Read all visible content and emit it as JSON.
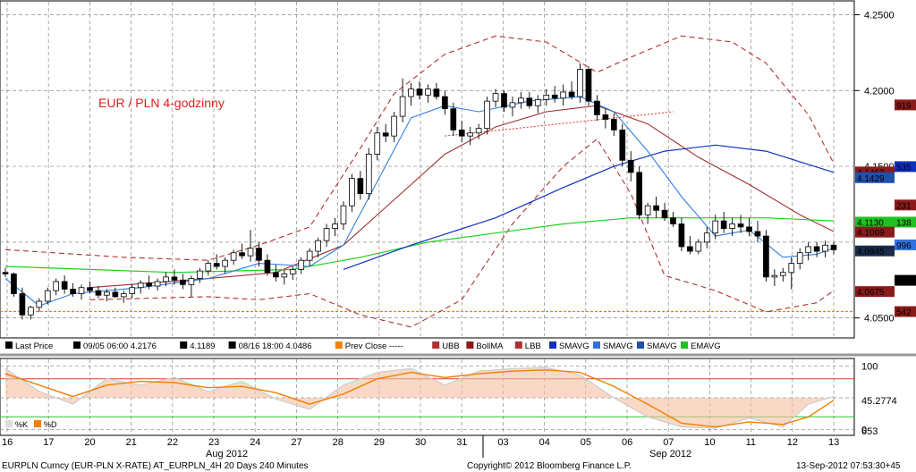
{
  "chart_data": {
    "type": "candlestick",
    "annotation": "EUR / PLN 4-godzinny",
    "price_axis": {
      "ylim": [
        4.038,
        4.255
      ],
      "ticks": [
        {
          "v": 4.25,
          "label": "4.2500"
        },
        {
          "v": 4.2,
          "label": "4.2000"
        },
        {
          "v": 4.05,
          "label": "4.0500"
        }
      ],
      "partial_ticks": [
        {
          "v": 4.15,
          "label": "4.1500"
        }
      ]
    },
    "x_day_labels": [
      "16",
      "17",
      "20",
      "21",
      "22",
      "23",
      "24",
      "27",
      "28",
      "29",
      "30",
      "31",
      "03",
      "04",
      "05",
      "06",
      "07",
      "10",
      "11",
      "12",
      "13"
    ],
    "month_labels": [
      "Aug 2012",
      "Sep 2012"
    ],
    "legend": [
      {
        "label": "Last Price",
        "color": "#000000"
      },
      {
        "label": "09/05 06:00 4.2176",
        "color": "#000000"
      },
      {
        "label": "4.1189",
        "color": "#000000"
      },
      {
        "label": "08/16 18:00 4.0486",
        "color": "#000000"
      },
      {
        "label": "Prev Close -----",
        "color": "#f08000"
      },
      {
        "label": "UBB",
        "color": "#b03030"
      },
      {
        "label": "BollMA",
        "color": "#8b1a1a"
      },
      {
        "label": "LBB",
        "color": "#b03030"
      },
      {
        "label": "SMAVG",
        "color": "#1030c0"
      },
      {
        "label": "SMAVG",
        "color": "#3070e0"
      },
      {
        "label": "SMAVG",
        "color": "#2050b0"
      },
      {
        "label": "EMAVG",
        "color": "#20c020"
      }
    ],
    "value_tags": [
      {
        "label": "919",
        "v": 4.1905,
        "bg": "#8b1a1a",
        "fg": "#ffffff"
      },
      {
        "label": "535",
        "v": 4.1498,
        "bg": "#1030c0",
        "fg": "#ffffff"
      },
      {
        "label": "4.1463",
        "v": 4.1463,
        "bg": "#8b1a1a",
        "fg": "#ffffff"
      },
      {
        "label": "4.1429",
        "v": 4.1425,
        "bg": "#2050b0",
        "fg": "#ffffff"
      },
      {
        "label": "231",
        "v": 4.1245,
        "bg": "#8b1a1a",
        "fg": "#ffffff"
      },
      {
        "label": "4.1130",
        "v": 4.1132,
        "bg": "#20c020",
        "fg": "#000000"
      },
      {
        "label": "138",
        "v": 4.1132,
        "bg": "#20c020",
        "fg": "#000000"
      },
      {
        "label": "4.1069",
        "v": 4.1066,
        "bg": "#8b1a1a",
        "fg": "#ffffff"
      },
      {
        "label": "996",
        "v": 4.0982,
        "bg": "#3070e0",
        "fg": "#ffffff"
      },
      {
        "label": "4.0945",
        "v": 4.0942,
        "bg": "#1a2a4a",
        "fg": "#ffffff"
      },
      {
        "label": "735",
        "v": 4.0748,
        "bg": "#000000",
        "fg": "#ffffff"
      },
      {
        "label": "4.0675",
        "v": 4.0674,
        "bg": "#8b1a1a",
        "fg": "#ffffff"
      },
      {
        "label": "542",
        "v": 4.0542,
        "bg": "#8b1a1a",
        "fg": "#ffffff"
      }
    ],
    "prev_close": 4.0542,
    "candles": [
      [
        4.08,
        4.083,
        4.077,
        4.079
      ],
      [
        4.079,
        4.08,
        4.064,
        4.066
      ],
      [
        4.066,
        4.07,
        4.049,
        4.052
      ],
      [
        4.052,
        4.058,
        4.049,
        4.057
      ],
      [
        4.057,
        4.063,
        4.054,
        4.061
      ],
      [
        4.061,
        4.07,
        4.059,
        4.068
      ],
      [
        4.068,
        4.076,
        4.065,
        4.074
      ],
      [
        4.074,
        4.078,
        4.066,
        4.069
      ],
      [
        4.069,
        4.073,
        4.064,
        4.066
      ],
      [
        4.066,
        4.072,
        4.062,
        4.07
      ],
      [
        4.07,
        4.074,
        4.066,
        4.068
      ],
      [
        4.068,
        4.071,
        4.063,
        4.065
      ],
      [
        4.065,
        4.069,
        4.061,
        4.067
      ],
      [
        4.067,
        4.07,
        4.063,
        4.064
      ],
      [
        4.064,
        4.068,
        4.06,
        4.066
      ],
      [
        4.066,
        4.072,
        4.063,
        4.07
      ],
      [
        4.07,
        4.075,
        4.066,
        4.073
      ],
      [
        4.073,
        4.078,
        4.069,
        4.071
      ],
      [
        4.071,
        4.076,
        4.068,
        4.074
      ],
      [
        4.074,
        4.08,
        4.071,
        4.077
      ],
      [
        4.077,
        4.082,
        4.072,
        4.075
      ],
      [
        4.075,
        4.079,
        4.069,
        4.072
      ],
      [
        4.072,
        4.078,
        4.064,
        4.076
      ],
      [
        4.076,
        4.083,
        4.073,
        4.081
      ],
      [
        4.081,
        4.088,
        4.078,
        4.086
      ],
      [
        4.086,
        4.092,
        4.082,
        4.084
      ],
      [
        4.084,
        4.09,
        4.079,
        4.088
      ],
      [
        4.088,
        4.095,
        4.085,
        4.093
      ],
      [
        4.093,
        4.099,
        4.089,
        4.091
      ],
      [
        4.091,
        4.108,
        4.087,
        4.096
      ],
      [
        4.096,
        4.1,
        4.084,
        4.088
      ],
      [
        4.088,
        4.092,
        4.078,
        4.08
      ],
      [
        4.08,
        4.085,
        4.074,
        4.077
      ],
      [
        4.077,
        4.082,
        4.072,
        4.079
      ],
      [
        4.079,
        4.084,
        4.075,
        4.082
      ],
      [
        4.082,
        4.09,
        4.079,
        4.088
      ],
      [
        4.088,
        4.096,
        4.084,
        4.094
      ],
      [
        4.094,
        4.103,
        4.09,
        4.101
      ],
      [
        4.101,
        4.112,
        4.097,
        4.109
      ],
      [
        4.109,
        4.116,
        4.104,
        4.112
      ],
      [
        4.112,
        4.127,
        4.108,
        4.124
      ],
      [
        4.124,
        4.145,
        4.12,
        4.142
      ],
      [
        4.142,
        4.147,
        4.128,
        4.132
      ],
      [
        4.132,
        4.162,
        4.128,
        4.158
      ],
      [
        4.158,
        4.176,
        4.154,
        4.172
      ],
      [
        4.172,
        4.178,
        4.166,
        4.17
      ],
      [
        4.17,
        4.186,
        4.166,
        4.183
      ],
      [
        4.183,
        4.208,
        4.179,
        4.196
      ],
      [
        4.196,
        4.205,
        4.19,
        4.201
      ],
      [
        4.201,
        4.206,
        4.194,
        4.197
      ],
      [
        4.197,
        4.204,
        4.192,
        4.201
      ],
      [
        4.201,
        4.205,
        4.194,
        4.196
      ],
      [
        4.196,
        4.2,
        4.184,
        4.188
      ],
      [
        4.188,
        4.192,
        4.17,
        4.174
      ],
      [
        4.174,
        4.18,
        4.166,
        4.17
      ],
      [
        4.17,
        4.176,
        4.164,
        4.172
      ],
      [
        4.172,
        4.178,
        4.168,
        4.175
      ],
      [
        4.175,
        4.196,
        4.171,
        4.193
      ],
      [
        4.193,
        4.201,
        4.189,
        4.198
      ],
      [
        4.198,
        4.2,
        4.186,
        4.189
      ],
      [
        4.189,
        4.196,
        4.183,
        4.192
      ],
      [
        4.192,
        4.199,
        4.188,
        4.195
      ],
      [
        4.195,
        4.199,
        4.188,
        4.19
      ],
      [
        4.19,
        4.197,
        4.185,
        4.194
      ],
      [
        4.194,
        4.201,
        4.19,
        4.197
      ],
      [
        4.197,
        4.203,
        4.192,
        4.195
      ],
      [
        4.195,
        4.204,
        4.19,
        4.199
      ],
      [
        4.199,
        4.206,
        4.194,
        4.196
      ],
      [
        4.196,
        4.218,
        4.192,
        4.214
      ],
      [
        4.214,
        4.216,
        4.19,
        4.193
      ],
      [
        4.193,
        4.197,
        4.18,
        4.184
      ],
      [
        4.184,
        4.188,
        4.175,
        4.181
      ],
      [
        4.181,
        4.185,
        4.17,
        4.174
      ],
      [
        4.174,
        4.178,
        4.15,
        4.154
      ],
      [
        4.154,
        4.16,
        4.14,
        4.146
      ],
      [
        4.146,
        4.15,
        4.115,
        4.118
      ],
      [
        4.118,
        4.126,
        4.112,
        4.124
      ],
      [
        4.124,
        4.13,
        4.116,
        4.121
      ],
      [
        4.121,
        4.126,
        4.114,
        4.116
      ],
      [
        4.116,
        4.12,
        4.11,
        4.112
      ],
      [
        4.112,
        4.116,
        4.094,
        4.097
      ],
      [
        4.097,
        4.104,
        4.092,
        4.094
      ],
      [
        4.094,
        4.102,
        4.092,
        4.1
      ],
      [
        4.1,
        4.11,
        4.096,
        4.106
      ],
      [
        4.106,
        4.118,
        4.102,
        4.114
      ],
      [
        4.114,
        4.12,
        4.106,
        4.109
      ],
      [
        4.109,
        4.116,
        4.104,
        4.112
      ],
      [
        4.112,
        4.118,
        4.106,
        4.11
      ],
      [
        4.11,
        4.116,
        4.104,
        4.107
      ],
      [
        4.107,
        4.114,
        4.1,
        4.104
      ],
      [
        4.104,
        4.108,
        4.074,
        4.077
      ],
      [
        4.077,
        4.082,
        4.071,
        4.078
      ],
      [
        4.078,
        4.083,
        4.074,
        4.08
      ],
      [
        4.08,
        4.09,
        4.069,
        4.086
      ],
      [
        4.086,
        4.096,
        4.082,
        4.093
      ],
      [
        4.093,
        4.1,
        4.088,
        4.097
      ],
      [
        4.097,
        4.1,
        4.09,
        4.094
      ],
      [
        4.094,
        4.101,
        4.09,
        4.098
      ],
      [
        4.098,
        4.1,
        4.092,
        4.095
      ]
    ],
    "bollinger": {
      "upper": [
        [
          0,
          4.095
        ],
        [
          14,
          4.09
        ],
        [
          24,
          4.088
        ],
        [
          30,
          4.098
        ],
        [
          36,
          4.11
        ],
        [
          42,
          4.162
        ],
        [
          46,
          4.198
        ],
        [
          52,
          4.224
        ],
        [
          58,
          4.236
        ],
        [
          64,
          4.232
        ],
        [
          70,
          4.212
        ],
        [
          74,
          4.222
        ],
        [
          80,
          4.236
        ],
        [
          86,
          4.232
        ],
        [
          90,
          4.218
        ],
        [
          95,
          4.184
        ],
        [
          98,
          4.152
        ]
      ],
      "mid": [
        [
          10,
          4.07
        ],
        [
          24,
          4.076
        ],
        [
          32,
          4.08
        ],
        [
          40,
          4.098
        ],
        [
          46,
          4.128
        ],
        [
          52,
          4.158
        ],
        [
          58,
          4.176
        ],
        [
          64,
          4.186
        ],
        [
          70,
          4.19
        ],
        [
          76,
          4.178
        ],
        [
          82,
          4.156
        ],
        [
          88,
          4.138
        ],
        [
          94,
          4.118
        ],
        [
          98,
          4.107
        ]
      ],
      "lower": [
        [
          10,
          4.062
        ],
        [
          24,
          4.064
        ],
        [
          30,
          4.062
        ],
        [
          36,
          4.066
        ],
        [
          42,
          4.052
        ],
        [
          48,
          4.044
        ],
        [
          54,
          4.062
        ],
        [
          60,
          4.112
        ],
        [
          66,
          4.15
        ],
        [
          70,
          4.168
        ],
        [
          74,
          4.132
        ],
        [
          78,
          4.078
        ],
        [
          84,
          4.068
        ],
        [
          90,
          4.054
        ],
        [
          96,
          4.06
        ],
        [
          98,
          4.068
        ]
      ]
    },
    "sma_dark_blue": [
      [
        40,
        4.082
      ],
      [
        48,
        4.098
      ],
      [
        58,
        4.116
      ],
      [
        66,
        4.136
      ],
      [
        72,
        4.15
      ],
      [
        78,
        4.16
      ],
      [
        84,
        4.164
      ],
      [
        90,
        4.16
      ],
      [
        98,
        4.146
      ]
    ],
    "sma_light_blue": [
      [
        0,
        4.076
      ],
      [
        4,
        4.058
      ],
      [
        8,
        4.066
      ],
      [
        16,
        4.07
      ],
      [
        24,
        4.076
      ],
      [
        30,
        4.086
      ],
      [
        36,
        4.084
      ],
      [
        40,
        4.098
      ],
      [
        44,
        4.14
      ],
      [
        48,
        4.182
      ],
      [
        52,
        4.19
      ],
      [
        56,
        4.186
      ],
      [
        62,
        4.193
      ],
      [
        68,
        4.196
      ],
      [
        72,
        4.186
      ],
      [
        76,
        4.16
      ],
      [
        80,
        4.13
      ],
      [
        84,
        4.104
      ],
      [
        88,
        4.108
      ],
      [
        92,
        4.09
      ],
      [
        96,
        4.092
      ],
      [
        98,
        4.096
      ]
    ],
    "ema_green": [
      [
        0,
        4.084
      ],
      [
        20,
        4.08
      ],
      [
        34,
        4.082
      ],
      [
        42,
        4.09
      ],
      [
        50,
        4.1
      ],
      [
        58,
        4.106
      ],
      [
        66,
        4.112
      ],
      [
        74,
        4.116
      ],
      [
        82,
        4.116
      ],
      [
        90,
        4.116
      ],
      [
        98,
        4.114
      ]
    ],
    "trendline": [
      [
        52,
        4.17
      ],
      [
        79,
        4.186
      ]
    ],
    "oscillator": {
      "ylim": [
        -5,
        105
      ],
      "ticks": [
        {
          "v": 100,
          "label": "100"
        },
        {
          "v": 0,
          "label": "0"
        }
      ],
      "levels": [
        {
          "v": 80,
          "color": "#d04030"
        },
        {
          "v": 20,
          "color": "#30c030"
        }
      ],
      "tags": [
        {
          "label": "45.2774",
          "v": 46
        },
        {
          "label": "653",
          "v": -2
        }
      ],
      "legend": [
        {
          "label": "%K",
          "color": "#dddddd"
        },
        {
          "label": "%D",
          "color": "#f08000"
        }
      ],
      "d_line": [
        [
          0,
          88
        ],
        [
          4,
          70
        ],
        [
          8,
          52
        ],
        [
          12,
          70
        ],
        [
          16,
          76
        ],
        [
          20,
          74
        ],
        [
          24,
          66
        ],
        [
          28,
          68
        ],
        [
          32,
          58
        ],
        [
          36,
          40
        ],
        [
          40,
          56
        ],
        [
          44,
          80
        ],
        [
          48,
          90
        ],
        [
          52,
          82
        ],
        [
          56,
          88
        ],
        [
          60,
          92
        ],
        [
          64,
          94
        ],
        [
          68,
          90
        ],
        [
          72,
          68
        ],
        [
          76,
          40
        ],
        [
          80,
          10
        ],
        [
          84,
          4
        ],
        [
          88,
          12
        ],
        [
          92,
          8
        ],
        [
          95,
          20
        ],
        [
          98,
          46
        ]
      ],
      "k_line": [
        [
          0,
          96
        ],
        [
          4,
          60
        ],
        [
          8,
          40
        ],
        [
          12,
          80
        ],
        [
          16,
          70
        ],
        [
          20,
          82
        ],
        [
          24,
          60
        ],
        [
          28,
          76
        ],
        [
          32,
          48
        ],
        [
          36,
          32
        ],
        [
          40,
          70
        ],
        [
          44,
          90
        ],
        [
          48,
          96
        ],
        [
          52,
          70
        ],
        [
          56,
          92
        ],
        [
          60,
          96
        ],
        [
          64,
          98
        ],
        [
          68,
          86
        ],
        [
          72,
          50
        ],
        [
          76,
          20
        ],
        [
          80,
          4
        ],
        [
          84,
          2
        ],
        [
          88,
          18
        ],
        [
          92,
          4
        ],
        [
          95,
          40
        ],
        [
          98,
          52
        ]
      ]
    }
  },
  "footer": {
    "left": "EURPLN Curncy (EUR-PLN X-RATE) AT_EURPLN_4H 20 Days 240 Minutes",
    "center": "Copyright© 2012 Bloomberg Finance L.P.",
    "right": "13-Sep-2012 07:53:30+45"
  }
}
